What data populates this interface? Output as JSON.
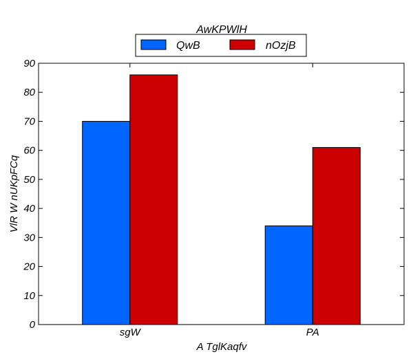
{
  "chart_data": {
    "type": "bar",
    "title": "AwKPWlH",
    "xlabel": "A TglKaqfv",
    "ylabel": "VlR W  nUKpFCq",
    "categories": [
      "sgW",
      "PA"
    ],
    "series": [
      {
        "name": "QwB",
        "values": [
          70,
          34
        ],
        "color": "#0066ff"
      },
      {
        "name": "nOzjB",
        "values": [
          86,
          61
        ],
        "color": "#cc0000"
      }
    ],
    "ylim": [
      0,
      90
    ],
    "yticks": [
      0,
      10,
      20,
      30,
      40,
      50,
      60,
      70,
      80,
      90
    ],
    "grid": false,
    "legend_position": "top-center"
  }
}
